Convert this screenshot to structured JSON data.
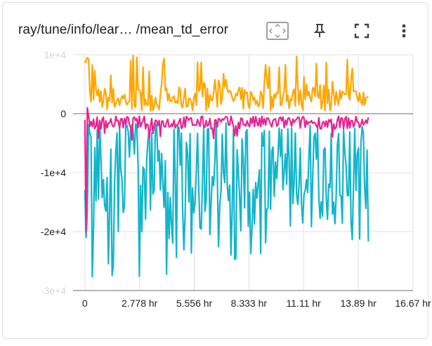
{
  "card": {
    "title": "ray/tune/info/lear… /mean_td_error",
    "toolbar": [
      {
        "name": "fit-domain-button",
        "icon": "fit-domain-icon"
      },
      {
        "name": "pin-button",
        "icon": "pin-icon"
      },
      {
        "name": "fullscreen-button",
        "icon": "fullscreen-icon"
      },
      {
        "name": "more-options-button",
        "icon": "more-vert-icon"
      }
    ]
  },
  "chart_data": {
    "type": "line",
    "xlabel": "",
    "ylabel": "",
    "x_ticks": [
      "0",
      "2.778 hr",
      "5.556 hr",
      "8.333 hr",
      "11.11 hr",
      "13.89 hr",
      "16.67 hr"
    ],
    "x_tick_values": [
      0,
      2.778,
      5.556,
      8.333,
      11.11,
      13.89,
      16.67
    ],
    "y_ticks": [
      "1e+4",
      "0",
      "-1e+4",
      "-2e+4",
      "-3e+4"
    ],
    "y_tick_values": [
      10000,
      0,
      -10000,
      -20000,
      -30000
    ],
    "xlim": [
      -0.6,
      16.67
    ],
    "ylim": [
      -30000,
      10000
    ],
    "grid": true,
    "series": [
      {
        "color": "#ffa600",
        "x_range": [
          0,
          14.4
        ],
        "y_min": 0,
        "y_max": 10000,
        "y_typical": 2500
      },
      {
        "color": "#12b5cb",
        "x_range": [
          0,
          14.4
        ],
        "y_min": -30000,
        "y_max": 0,
        "y_typical": -12000
      },
      {
        "color": "#e52592",
        "x_range": [
          0,
          14.4
        ],
        "y_min": -20000,
        "y_max": 1000,
        "y_typical": -1500
      }
    ]
  }
}
